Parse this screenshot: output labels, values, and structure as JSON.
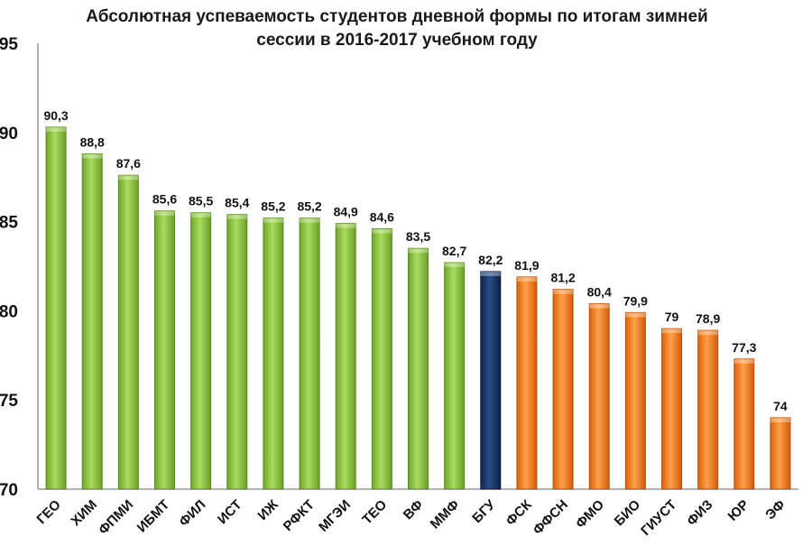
{
  "chart_data": {
    "type": "bar",
    "title_line1": "Абсолютная успеваемость студентов дневной формы по итогам зимней",
    "title_line2": "сессии в 2016-2017 учебном году",
    "categories": [
      "ГЕО",
      "ХИМ",
      "ФПМИ",
      "ИБМТ",
      "ФИЛ",
      "ИСТ",
      "ИЖ",
      "РФКТ",
      "МГЭИ",
      "ТЕО",
      "ВФ",
      "ММФ",
      "БГУ",
      "ФСК",
      "ФФСН",
      "ФМО",
      "БИО",
      "ГИУСТ",
      "ФИЗ",
      "ЮР",
      "ЭФ"
    ],
    "values": [
      90.3,
      88.8,
      87.6,
      85.6,
      85.5,
      85.4,
      85.2,
      85.2,
      84.9,
      84.6,
      83.5,
      82.7,
      82.2,
      81.9,
      81.2,
      80.4,
      79.9,
      79,
      78.9,
      77.3,
      74
    ],
    "value_labels": [
      "90,3",
      "88,8",
      "87,6",
      "85,6",
      "85,5",
      "85,4",
      "85,2",
      "85,2",
      "84,9",
      "84,6",
      "83,5",
      "82,7",
      "82,2",
      "81,9",
      "81,2",
      "80,4",
      "79,9",
      "79",
      "78,9",
      "77,3",
      "74"
    ],
    "bar_colors": [
      "#8cc63f",
      "#8cc63f",
      "#8cc63f",
      "#8cc63f",
      "#8cc63f",
      "#8cc63f",
      "#8cc63f",
      "#8cc63f",
      "#8cc63f",
      "#8cc63f",
      "#8cc63f",
      "#8cc63f",
      "#1f3a6e",
      "#f58220",
      "#f58220",
      "#f58220",
      "#f58220",
      "#f58220",
      "#f58220",
      "#f58220",
      "#f58220"
    ],
    "ylim": [
      70,
      95
    ],
    "yticks": [
      70,
      75,
      80,
      85,
      90,
      95
    ],
    "xlabel": "",
    "ylabel": "",
    "grid": false,
    "legend": "none"
  }
}
